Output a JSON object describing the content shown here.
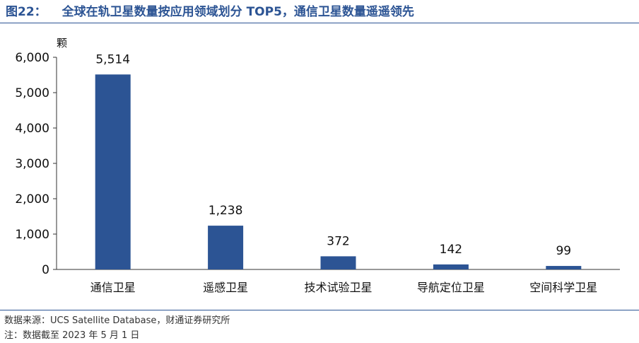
{
  "figure": {
    "number": "图22：",
    "title": "全球在轨卫星数量按应用领域划分 TOP5，通信卫星数量遥遥领先"
  },
  "chart_data": {
    "type": "bar",
    "categories": [
      "通信卫星",
      "遥感卫星",
      "技术试验卫星",
      "导航定位卫星",
      "空间科学卫星"
    ],
    "values": [
      5514,
      1238,
      372,
      142,
      99
    ],
    "data_labels": [
      "5,514",
      "1,238",
      "372",
      "142",
      "99"
    ],
    "ylabel": "颗",
    "xlabel": "",
    "ylim": [
      0,
      6000
    ],
    "yticks": [
      0,
      1000,
      2000,
      3000,
      4000,
      5000,
      6000
    ],
    "ytick_labels": [
      "0",
      "1,000",
      "2,000",
      "3,000",
      "4,000",
      "5,000",
      "6,000"
    ],
    "grid": false,
    "bar_color": "#2c5494"
  },
  "footer": {
    "source": "数据来源：UCS Satellite Database，财通证券研究所",
    "note": "注：数据截至 2023 年 5 月 1 日"
  },
  "colors": {
    "accent": "#2c5494"
  }
}
